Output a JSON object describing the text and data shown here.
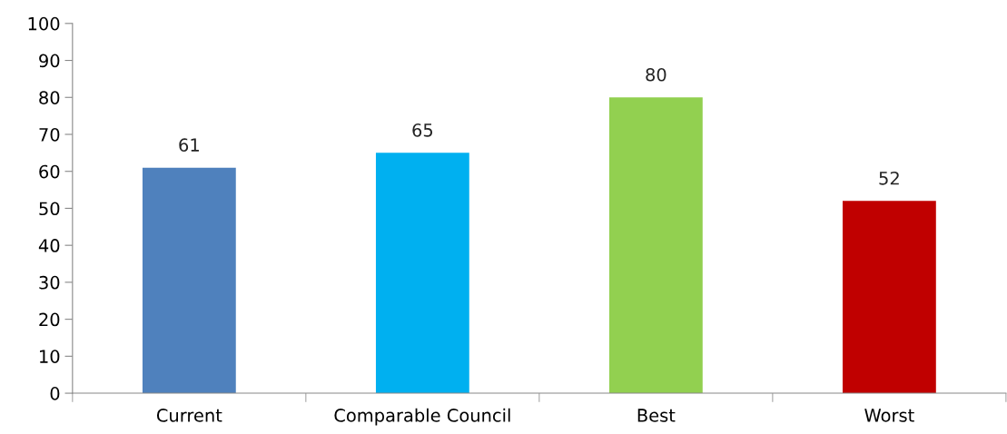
{
  "chart_data": {
    "type": "bar",
    "categories": [
      "Current",
      "Comparable Council",
      "Best",
      "Worst"
    ],
    "values": [
      61,
      65,
      80,
      52
    ],
    "colors": [
      "#4f81bd",
      "#00b0f0",
      "#92d050",
      "#c00000"
    ],
    "ylim": [
      0,
      100
    ],
    "yticks": [
      0,
      10,
      20,
      30,
      40,
      50,
      60,
      70,
      80,
      90,
      100
    ],
    "data_labels": true,
    "grid": false,
    "legend": false
  }
}
